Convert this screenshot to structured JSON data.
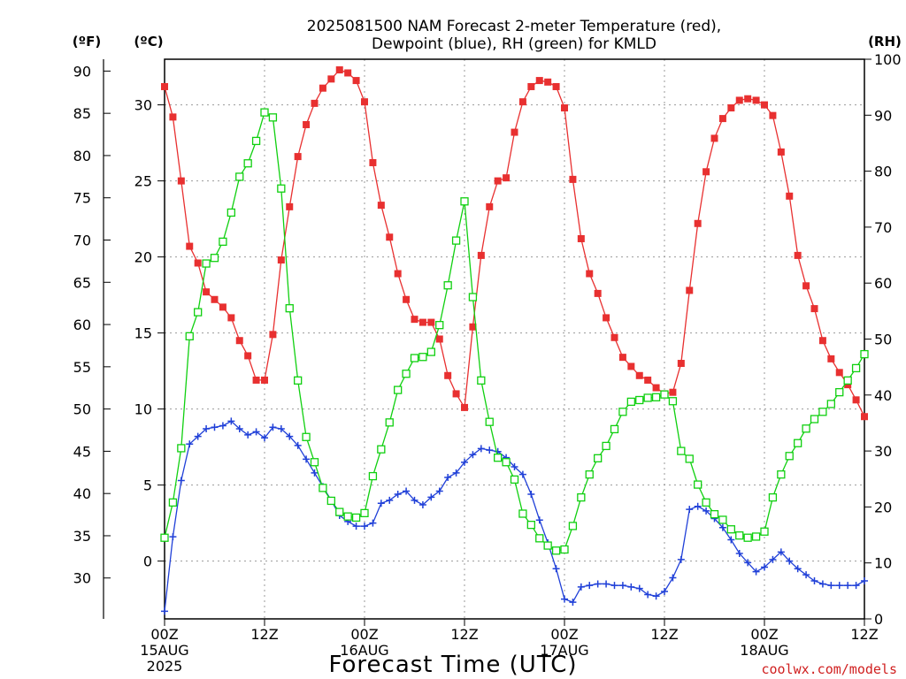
{
  "chart_data": {
    "type": "line",
    "title_line1": "2025081500 NAM Forecast 2-meter Temperature (red),",
    "title_line2": "Dewpoint (blue), RH (green) for KMLD",
    "xlabel": "Forecast Time (UTC)",
    "credit": "coolwx.com/models",
    "axis_units": {
      "fahrenheit": "(ºF)",
      "celsius": "(ºC)",
      "rh": "(RH)"
    },
    "x_hours_range": [
      0,
      84
    ],
    "celsius_range": [
      -3.8,
      33.0
    ],
    "rh_range": [
      0,
      100
    ],
    "grid": true,
    "legend": "none",
    "colors": {
      "temperature": "#e83030",
      "dewpoint": "#2040d8",
      "rh": "#10d010",
      "credit": "#d02020"
    },
    "x_ticks": [
      {
        "hour": 0,
        "label": "00Z",
        "date": "15AUG",
        "year": "2025"
      },
      {
        "hour": 12,
        "label": "12Z"
      },
      {
        "hour": 24,
        "label": "00Z",
        "date": "16AUG"
      },
      {
        "hour": 36,
        "label": "12Z"
      },
      {
        "hour": 48,
        "label": "00Z",
        "date": "17AUG"
      },
      {
        "hour": 60,
        "label": "12Z"
      },
      {
        "hour": 72,
        "label": "00Z",
        "date": "18AUG"
      },
      {
        "hour": 84,
        "label": "12Z"
      }
    ],
    "celsius_ticks": [
      0,
      5,
      10,
      15,
      20,
      25,
      30
    ],
    "fahrenheit_ticks": [
      30,
      35,
      40,
      45,
      50,
      55,
      60,
      65,
      70,
      75,
      80,
      85,
      90
    ],
    "rh_ticks": [
      0,
      10,
      20,
      30,
      40,
      50,
      60,
      70,
      80,
      90,
      100
    ],
    "series": [
      {
        "key": "temperature",
        "unit": "C",
        "hours": [
          0,
          1,
          2,
          3,
          4,
          5,
          6,
          7,
          8,
          9,
          10,
          11,
          12,
          13,
          14,
          15,
          16,
          17,
          18,
          19,
          20,
          21,
          22,
          23,
          24,
          25,
          26,
          27,
          28,
          29,
          30,
          31,
          32,
          33,
          34,
          35,
          36,
          37,
          38,
          39,
          40,
          41,
          42,
          43,
          44,
          45,
          46,
          47,
          48,
          49,
          50,
          51,
          52,
          53,
          54,
          55,
          56,
          57,
          58,
          59,
          60,
          61,
          62,
          63,
          64,
          65,
          66,
          67,
          68,
          69,
          70,
          71,
          72,
          73,
          74,
          75,
          76,
          77,
          78,
          79,
          80,
          81,
          82,
          83,
          84
        ],
        "values": [
          31.2,
          29.2,
          25.0,
          20.7,
          19.6,
          17.7,
          17.2,
          16.7,
          16.0,
          14.5,
          13.5,
          11.9,
          11.9,
          14.9,
          19.8,
          23.3,
          26.6,
          28.7,
          30.1,
          31.1,
          31.7,
          32.3,
          32.1,
          31.6,
          30.2,
          26.2,
          23.4,
          21.3,
          18.9,
          17.2,
          15.9,
          15.7,
          15.7,
          14.6,
          12.2,
          11.0,
          10.1,
          15.4,
          20.1,
          23.3,
          25.0,
          25.2,
          28.2,
          30.2,
          31.2,
          31.6,
          31.5,
          31.2,
          29.8,
          25.1,
          21.2,
          18.9,
          17.6,
          16.0,
          14.7,
          13.4,
          12.8,
          12.2,
          11.9,
          11.4,
          11.0,
          11.1,
          13.0,
          17.8,
          22.2,
          25.6,
          27.8,
          29.1,
          29.8,
          30.3,
          30.4,
          30.3,
          30.0,
          29.3,
          26.9,
          24.0,
          20.1,
          18.1,
          16.6,
          14.5,
          13.3,
          12.4,
          11.6,
          10.6,
          9.5
        ]
      },
      {
        "key": "dewpoint",
        "unit": "C",
        "hours": [
          0,
          1,
          2,
          3,
          4,
          5,
          6,
          7,
          8,
          9,
          10,
          11,
          12,
          13,
          14,
          15,
          16,
          17,
          18,
          19,
          20,
          21,
          22,
          23,
          24,
          25,
          26,
          27,
          28,
          29,
          30,
          31,
          32,
          33,
          34,
          35,
          36,
          37,
          38,
          39,
          40,
          41,
          42,
          43,
          44,
          45,
          46,
          47,
          48,
          49,
          50,
          51,
          52,
          53,
          54,
          55,
          56,
          57,
          58,
          59,
          60,
          61,
          62,
          63,
          64,
          65,
          66,
          67,
          68,
          69,
          70,
          71,
          72,
          73,
          74,
          75,
          76,
          77,
          78,
          79,
          80,
          81,
          82,
          83,
          84
        ],
        "values": [
          -3.3,
          1.6,
          5.3,
          7.7,
          8.2,
          8.7,
          8.8,
          8.9,
          9.2,
          8.7,
          8.3,
          8.5,
          8.1,
          8.8,
          8.7,
          8.2,
          7.6,
          6.7,
          5.8,
          4.9,
          4.0,
          3.0,
          2.6,
          2.3,
          2.3,
          2.5,
          3.8,
          4.0,
          4.4,
          4.6,
          4.0,
          3.7,
          4.2,
          4.6,
          5.5,
          5.8,
          6.5,
          7.0,
          7.4,
          7.3,
          7.2,
          6.8,
          6.2,
          5.7,
          4.4,
          2.7,
          1.2,
          -0.5,
          -2.5,
          -2.7,
          -1.7,
          -1.6,
          -1.5,
          -1.5,
          -1.6,
          -1.6,
          -1.7,
          -1.8,
          -2.2,
          -2.3,
          -2.0,
          -1.1,
          0.1,
          3.4,
          3.6,
          3.3,
          2.8,
          2.2,
          1.4,
          0.5,
          -0.1,
          -0.7,
          -0.4,
          0.1,
          0.6,
          0.0,
          -0.5,
          -0.9,
          -1.3,
          -1.5,
          -1.6,
          -1.6,
          -1.6,
          -1.6,
          -1.3
        ]
      },
      {
        "key": "rh",
        "unit": "%",
        "hours": [
          0,
          1,
          2,
          3,
          4,
          5,
          6,
          7,
          8,
          9,
          10,
          11,
          12,
          13,
          14,
          15,
          16,
          17,
          18,
          19,
          20,
          21,
          22,
          23,
          24,
          25,
          26,
          27,
          28,
          29,
          30,
          31,
          32,
          33,
          34,
          35,
          36,
          37,
          38,
          39,
          40,
          41,
          42,
          43,
          44,
          45,
          46,
          47,
          48,
          49,
          50,
          51,
          52,
          53,
          54,
          55,
          56,
          57,
          58,
          59,
          60,
          61,
          62,
          63,
          64,
          65,
          66,
          67,
          68,
          69,
          70,
          71,
          72,
          73,
          74,
          75,
          76,
          77,
          78,
          79,
          80,
          81,
          82,
          83,
          84
        ],
        "values": [
          14.5,
          20.8,
          30.5,
          50.5,
          54.8,
          63.5,
          64.5,
          67.4,
          72.6,
          79.0,
          81.4,
          85.4,
          90.5,
          89.6,
          76.9,
          55.5,
          42.6,
          32.5,
          28.0,
          23.4,
          21.1,
          19.1,
          18.3,
          18.1,
          18.9,
          25.5,
          30.3,
          35.1,
          40.9,
          43.8,
          46.6,
          46.8,
          47.7,
          52.5,
          59.6,
          67.6,
          74.6,
          57.5,
          42.6,
          35.2,
          28.8,
          28.0,
          24.9,
          18.8,
          16.8,
          14.4,
          13.1,
          12.2,
          12.4,
          16.6,
          21.7,
          25.8,
          28.7,
          30.9,
          33.9,
          37.0,
          38.8,
          39.1,
          39.5,
          39.6,
          40.1,
          38.9,
          30.0,
          28.6,
          24.0,
          20.8,
          18.7,
          17.7,
          16.0,
          14.9,
          14.5,
          14.7,
          15.6,
          21.7,
          25.8,
          29.1,
          31.4,
          34.0,
          35.7,
          37.0,
          38.4,
          40.5,
          42.6,
          44.8,
          47.3
        ]
      }
    ]
  }
}
